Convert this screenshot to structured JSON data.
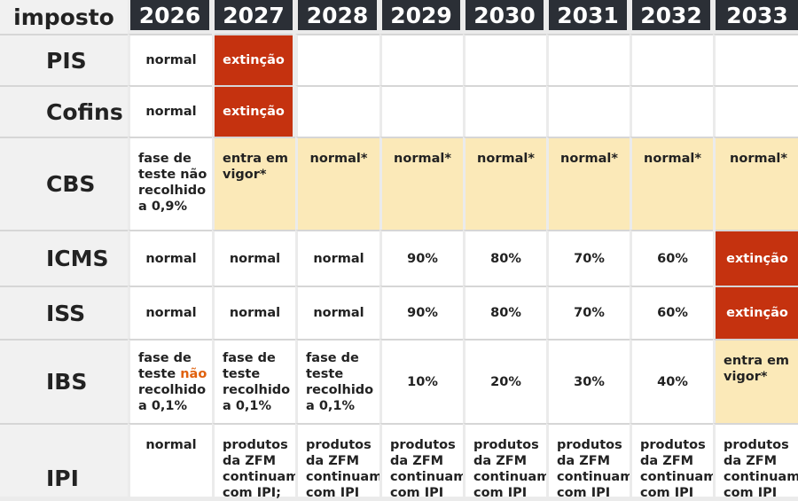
{
  "header": {
    "label": "imposto",
    "years": [
      "2026",
      "2027",
      "2028",
      "2029",
      "2030",
      "2031",
      "2032",
      "2033"
    ]
  },
  "rows": [
    {
      "tax": "PIS",
      "cells": [
        "normal",
        "extinção",
        "",
        "",
        "",
        "",
        "",
        ""
      ]
    },
    {
      "tax": "Cofins",
      "cells": [
        "normal",
        "extinção",
        "",
        "",
        "",
        "",
        "",
        ""
      ]
    },
    {
      "tax": "CBS",
      "cells": [
        "fase de teste não recolhido a 0,9%",
        "entra em vigor*",
        "normal*",
        "normal*",
        "normal*",
        "normal*",
        "normal*",
        "normal*"
      ]
    },
    {
      "tax": "ICMS",
      "cells": [
        "normal",
        "normal",
        "normal",
        "90%",
        "80%",
        "70%",
        "60%",
        "extinção"
      ]
    },
    {
      "tax": "ISS",
      "cells": [
        "normal",
        "normal",
        "normal",
        "90%",
        "80%",
        "70%",
        "60%",
        "extinção"
      ]
    },
    {
      "tax": "IBS",
      "cells": [
        "fase de teste não recolhido a 0,1%",
        "fase de teste recolhido a 0,1%",
        "fase de teste recolhido a 0,1%",
        "10%",
        "20%",
        "30%",
        "40%",
        "entra em vigor*"
      ]
    },
    {
      "tax": "IPI",
      "cells": [
        "normal",
        "produtos da ZFM continuam com IPI;",
        "produtos da ZFM continuam com IPI",
        "produtos da ZFM continuam com IPI",
        "produtos da ZFM continuam com IPI",
        "produtos da ZFM continuam com IPI",
        "produtos da ZFM continuam com IPI",
        "produtos da ZFM continuam com IPI"
      ]
    }
  ],
  "colors": {
    "header_bg": "#2b2f36",
    "extinction_red": "#c5320f",
    "vigor_yellow": "#fbe9b8",
    "highlight_orange": "#e0610e"
  }
}
